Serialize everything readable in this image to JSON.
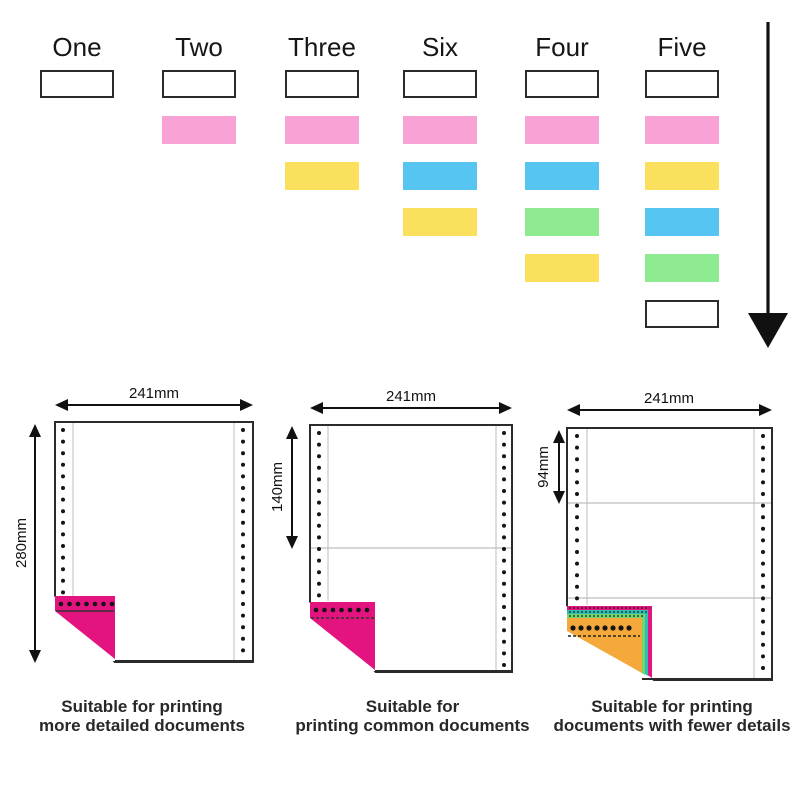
{
  "header": {
    "columns": [
      {
        "label": "One",
        "plies": [
          "white_bordered"
        ]
      },
      {
        "label": "Two",
        "plies": [
          "white_bordered",
          "pink"
        ]
      },
      {
        "label": "Three",
        "plies": [
          "white_bordered",
          "pink",
          "yellow"
        ]
      },
      {
        "label": "Six",
        "plies": [
          "white_bordered",
          "pink",
          "blue",
          "yellow"
        ]
      },
      {
        "label": "Four",
        "plies": [
          "white_bordered",
          "pink",
          "blue",
          "green",
          "yellow"
        ]
      },
      {
        "label": "Five",
        "plies": [
          "white_bordered",
          "pink",
          "yellow",
          "blue",
          "green",
          "white_bordered"
        ]
      }
    ],
    "flow_arrow_direction": "down"
  },
  "ply_colors": {
    "white_bordered": "#ffffff",
    "pink": "#F8A2D6",
    "yellow": "#FBE05E",
    "blue": "#56C5F2",
    "green": "#8EEB92"
  },
  "fold_colors": {
    "magenta": "#E3137F",
    "teal": "#2EC0B2",
    "green": "#6FD96F",
    "orange": "#F5A93B"
  },
  "diagrams": [
    {
      "width_label": "241mm",
      "height_label": "280mm",
      "sections": 1,
      "fold_plies": [
        "magenta"
      ],
      "caption": [
        "Suitable for printing",
        "more detailed documents"
      ]
    },
    {
      "width_label": "241mm",
      "height_label": "140mm",
      "sections": 2,
      "fold_plies": [
        "magenta"
      ],
      "caption": [
        "Suitable for",
        "printing common documents"
      ]
    },
    {
      "width_label": "241mm",
      "height_label": "94mm",
      "sections": 3,
      "fold_plies": [
        "magenta",
        "teal",
        "green",
        "orange"
      ],
      "caption": [
        "Suitable for printing",
        "documents with fewer details"
      ]
    }
  ]
}
